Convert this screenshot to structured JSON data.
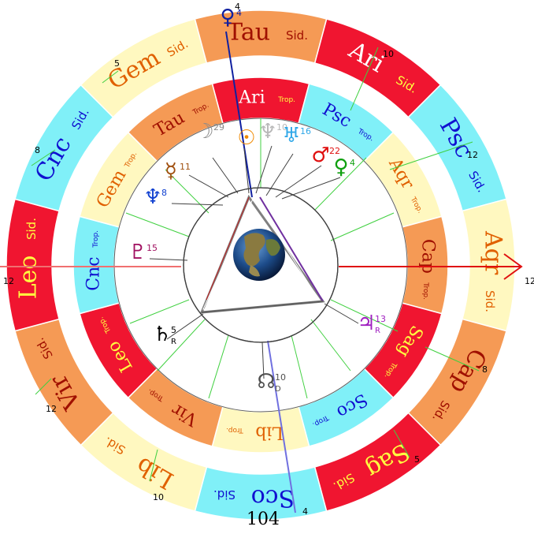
{
  "page_number": "104",
  "page_number_sup": "4",
  "outer_ring": {
    "suffix": "Sid.",
    "signs": [
      {
        "abbr": "Ari",
        "color": "#f01530",
        "text": "#ffffff",
        "sfx": "#ffff40"
      },
      {
        "abbr": "Psc",
        "color": "#80f0f8",
        "text": "#1010d0",
        "sfx": "#1010d0"
      },
      {
        "abbr": "Aqr",
        "color": "#fff8c0",
        "text": "#e06000",
        "sfx": "#e06000"
      },
      {
        "abbr": "Cap",
        "color": "#f59a55",
        "text": "#a01000",
        "sfx": "#a01000"
      },
      {
        "abbr": "Sag",
        "color": "#f01530",
        "text": "#ffff40",
        "sfx": "#ffff40"
      },
      {
        "abbr": "Sco",
        "color": "#80f0f8",
        "text": "#1010d0",
        "sfx": "#1010d0"
      },
      {
        "abbr": "Lib",
        "color": "#fff8c0",
        "text": "#e06000",
        "sfx": "#e06000"
      },
      {
        "abbr": "Vir",
        "color": "#f59a55",
        "text": "#a01000",
        "sfx": "#a01000"
      },
      {
        "abbr": "Leo",
        "color": "#f01530",
        "text": "#ffff40",
        "sfx": "#ffff40"
      },
      {
        "abbr": "Cnc",
        "color": "#80f0f8",
        "text": "#1010d0",
        "sfx": "#1010d0"
      },
      {
        "abbr": "Gem",
        "color": "#fff8c0",
        "text": "#e06000",
        "sfx": "#e06000"
      },
      {
        "abbr": "Tau",
        "color": "#f59a55",
        "text": "#a01000",
        "sfx": "#a01000"
      }
    ]
  },
  "inner_ring": {
    "suffix": "Trop.",
    "signs": [
      {
        "abbr": "Ari",
        "color": "#f01530",
        "text": "#ffffff",
        "sfx": "#ffff40"
      },
      {
        "abbr": "Psc",
        "color": "#80f0f8",
        "text": "#1010d0",
        "sfx": "#1010d0"
      },
      {
        "abbr": "Aqr",
        "color": "#fff8c0",
        "text": "#e06000",
        "sfx": "#e06000"
      },
      {
        "abbr": "Cap",
        "color": "#f59a55",
        "text": "#a01000",
        "sfx": "#a01000"
      },
      {
        "abbr": "Sag",
        "color": "#f01530",
        "text": "#ffff40",
        "sfx": "#ffff40"
      },
      {
        "abbr": "Sco",
        "color": "#80f0f8",
        "text": "#1010d0",
        "sfx": "#1010d0"
      },
      {
        "abbr": "Lib",
        "color": "#fff8c0",
        "text": "#e06000",
        "sfx": "#e06000"
      },
      {
        "abbr": "Vir",
        "color": "#f59a55",
        "text": "#a01000",
        "sfx": "#a01000"
      },
      {
        "abbr": "Leo",
        "color": "#f01530",
        "text": "#ffff40",
        "sfx": "#ffff40"
      },
      {
        "abbr": "Cnc",
        "color": "#80f0f8",
        "text": "#1010d0",
        "sfx": "#1010d0"
      },
      {
        "abbr": "Gem",
        "color": "#fff8c0",
        "text": "#e06000",
        "sfx": "#e06000"
      },
      {
        "abbr": "Tau",
        "color": "#f59a55",
        "text": "#a01000",
        "sfx": "#a01000"
      }
    ]
  },
  "house_cusp_labels": [
    "4",
    "10",
    "12",
    "12",
    "8",
    "5",
    "4",
    "10",
    "12",
    "8",
    "5"
  ],
  "planets": [
    {
      "name": "moon",
      "glyph": "☽",
      "degree": "29",
      "color": "#8a8a8a"
    },
    {
      "name": "sun",
      "glyph": "☉",
      "degree": "",
      "color": "#f08a00"
    },
    {
      "name": "ascendant-glyph",
      "glyph": "♆",
      "degree": "10",
      "color": "#b8b8b8"
    },
    {
      "name": "uranus",
      "glyph": "♅",
      "degree": "16",
      "color": "#30a8e8"
    },
    {
      "name": "mars",
      "glyph": "♂",
      "degree": "22",
      "color": "#e01010"
    },
    {
      "name": "venus",
      "glyph": "♀",
      "degree": "4",
      "color": "#10a010"
    },
    {
      "name": "mercury",
      "glyph": "☿",
      "degree": "11",
      "color": "#a05010"
    },
    {
      "name": "neptune",
      "glyph": "♆",
      "degree": "8",
      "color": "#1040d0"
    },
    {
      "name": "pluto",
      "glyph": "♇",
      "degree": "15",
      "color": "#a01060"
    },
    {
      "name": "saturn",
      "glyph": "♄",
      "degree": "5",
      "retro": "R",
      "color": "#000000"
    },
    {
      "name": "north-node",
      "glyph": "☊",
      "degree": "10",
      "retro": "D",
      "color": "#505050"
    },
    {
      "name": "jupiter",
      "glyph": "♃",
      "degree": "13",
      "retro": "R",
      "color": "#a020c0"
    },
    {
      "name": "top-marker",
      "glyph": "♀",
      "degree": "4",
      "color": "#1020a0"
    }
  ],
  "axis_labels": {
    "left": "12",
    "right": "12"
  }
}
